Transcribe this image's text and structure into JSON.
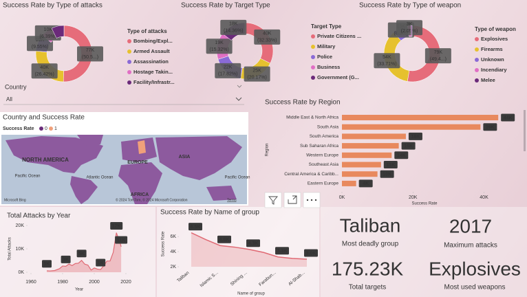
{
  "chart_data": [
    {
      "type": "donut",
      "title": "Success Rate by Type of attacks",
      "legend_title": "Type of attacks",
      "categories": [
        "Bombing/Expl...",
        "Armed Assault",
        "Assassination",
        "Hostage Takin...",
        "Facility/Infrastr..."
      ],
      "values": [
        77000,
        40000,
        15000,
        10000,
        11000
      ],
      "value_labels": [
        "77K",
        "40K",
        "15K",
        "10K",
        null
      ],
      "percents": [
        50.5,
        26.42,
        9.55,
        6.39,
        null
      ],
      "percent_labels": [
        "(50.5...)",
        "(26.42%)",
        "(9.55%)",
        "(6.39%)",
        null
      ],
      "colors": [
        "#e66c7a",
        "#e6c12e",
        "#8a6ad6",
        "#e06fc4",
        "#6b2a7a"
      ]
    },
    {
      "type": "donut",
      "title": "Success Rate by Target Type",
      "legend_title": "Target Type",
      "categories": [
        "Private Citizens ...",
        "Military",
        "Police",
        "Business",
        "Government (G..."
      ],
      "values": [
        40000,
        25000,
        22000,
        19000,
        18000
      ],
      "value_labels": [
        "40K",
        "25K",
        "22K",
        "19K",
        "18K"
      ],
      "percents": [
        32.33,
        20.17,
        17.82,
        15.32,
        14.36
      ],
      "percent_labels": [
        "(32.33%)",
        "(20.17%)",
        "(17.82%)",
        "(15.32%)",
        "(14.36%)"
      ],
      "colors": [
        "#e66c7a",
        "#e6c12e",
        "#8a6ad6",
        "#e06fc4",
        "#6b2a7a"
      ]
    },
    {
      "type": "donut",
      "title": "Success Rate by Type of weapon",
      "legend_title": "Type of weapon",
      "categories": [
        "Explosives",
        "Firearms",
        "Unknown",
        "Incendiary",
        "Melee"
      ],
      "values": [
        79000,
        54000,
        13000,
        3000,
        1000
      ],
      "value_labels": [
        "79K",
        "54K",
        "13K",
        "3K",
        null
      ],
      "percents": [
        49.4,
        33.71,
        8.3,
        2.05,
        null
      ],
      "percent_labels": [
        "(49.4...)",
        "(33.71%)",
        "(8.3%)",
        "(2.05%)",
        null
      ],
      "colors": [
        "#e66c7a",
        "#e6c12e",
        "#8a6ad6",
        "#e06fc4",
        "#6b2a7a"
      ]
    },
    {
      "type": "hbar",
      "title": "Success Rate by Region",
      "x_label": "Success Rate",
      "y_label": "Region",
      "categories": [
        "Middle East & North Africa",
        "South Asia",
        "South America",
        "Sub Saharan Africa",
        "Western Europe",
        "Southeast Asia",
        "Central America & Caribb...",
        "Eastern Europe"
      ],
      "values": [
        44000,
        39000,
        18000,
        16000,
        14000,
        11000,
        10000,
        4000
      ],
      "value_labels": [
        "44K",
        "39K",
        "18K",
        "16K",
        "14K",
        "11K",
        "10K",
        "4K"
      ],
      "color": "#e8895e",
      "xlim": [
        0,
        49000
      ],
      "xticks": [
        {
          "value": 0,
          "label": "0K"
        },
        {
          "value": 20000,
          "label": "20K"
        },
        {
          "value": 40000,
          "label": "40K"
        }
      ]
    },
    {
      "type": "area",
      "title": "Total Attacks by Year",
      "x_label": "Year",
      "y_label": "Total Attacks",
      "x": [
        1970,
        1972,
        1975,
        1978,
        1980,
        1982,
        1984,
        1986,
        1988,
        1990,
        1992,
        1994,
        1996,
        1998,
        2000,
        2002,
        2004,
        2006,
        2008,
        2010,
        2012,
        2014,
        2015,
        2016,
        2017
      ],
      "values": [
        651,
        568,
        740,
        1526,
        2662,
        2544,
        3495,
        2860,
        3721,
        3887,
        5071,
        3456,
        3058,
        934,
        1814,
        1333,
        1166,
        2758,
        4805,
        4826,
        8522,
        16903,
        14965,
        13587,
        10900
      ],
      "value_labels": [
        "1K",
        null,
        null,
        null,
        null,
        "3K",
        null,
        null,
        null,
        null,
        "5K",
        null,
        null,
        null,
        null,
        null,
        "1K",
        null,
        null,
        null,
        null,
        "17K",
        null,
        null,
        "11K"
      ],
      "color": "#e06a74",
      "xlim": [
        1960,
        2022
      ],
      "xticks": [
        1960,
        1980,
        2000,
        2020
      ],
      "ylim": [
        0,
        20000
      ],
      "yticks": [
        {
          "value": 0,
          "label": "0K"
        },
        {
          "value": 10000,
          "label": "10K"
        },
        {
          "value": 20000,
          "label": "20K"
        }
      ]
    },
    {
      "type": "line",
      "title": "Success Rate by Name of group",
      "x_label": "Name of group",
      "y_label": "Success Rate",
      "categories": [
        "Taliban",
        null,
        "Islamic S...",
        null,
        "Shining ...",
        null,
        "Farabun...",
        null,
        "Al-Shab..."
      ],
      "values": [
        6500,
        5600,
        4800,
        4600,
        4300,
        3900,
        3300,
        3100,
        3000
      ],
      "value_labels": [
        "6.5K",
        null,
        "4.8K",
        null,
        "4.3K",
        null,
        "3.3K",
        null,
        "3.0K"
      ],
      "color": "#e06a74",
      "ylim": [
        2000,
        7700
      ],
      "yticks": [
        {
          "value": 2000,
          "label": "2K"
        },
        {
          "value": 4000,
          "label": "4K"
        },
        {
          "value": 6000,
          "label": "6K"
        }
      ]
    }
  ],
  "slicer": {
    "label": "Country",
    "value": "All"
  },
  "map": {
    "title": "Country and Success Rate",
    "legend_title": "Success Rate",
    "legend_items": [
      "0",
      "1"
    ],
    "legend_colors": [
      "#6a2c7a",
      "#f0a07a"
    ],
    "labels": [
      "NORTH AMERICA",
      "EUROPE",
      "ASIA",
      "AFRICA",
      "Pacific Ocean",
      "Atlantic Ocean",
      "Pacific Ocean"
    ],
    "attribution": "© 2024 TomTom, © 2024 Microsoft Corporation",
    "terms": "Terms",
    "logo": "Microsoft Bing"
  },
  "cards": [
    {
      "value": "Taliban",
      "label": "Most deadly group"
    },
    {
      "value": "2017",
      "label": "Maximum attacks"
    },
    {
      "value": "175.23K",
      "label": "Total targets"
    },
    {
      "value": "Explosives",
      "label": "Most used weapons"
    }
  ]
}
